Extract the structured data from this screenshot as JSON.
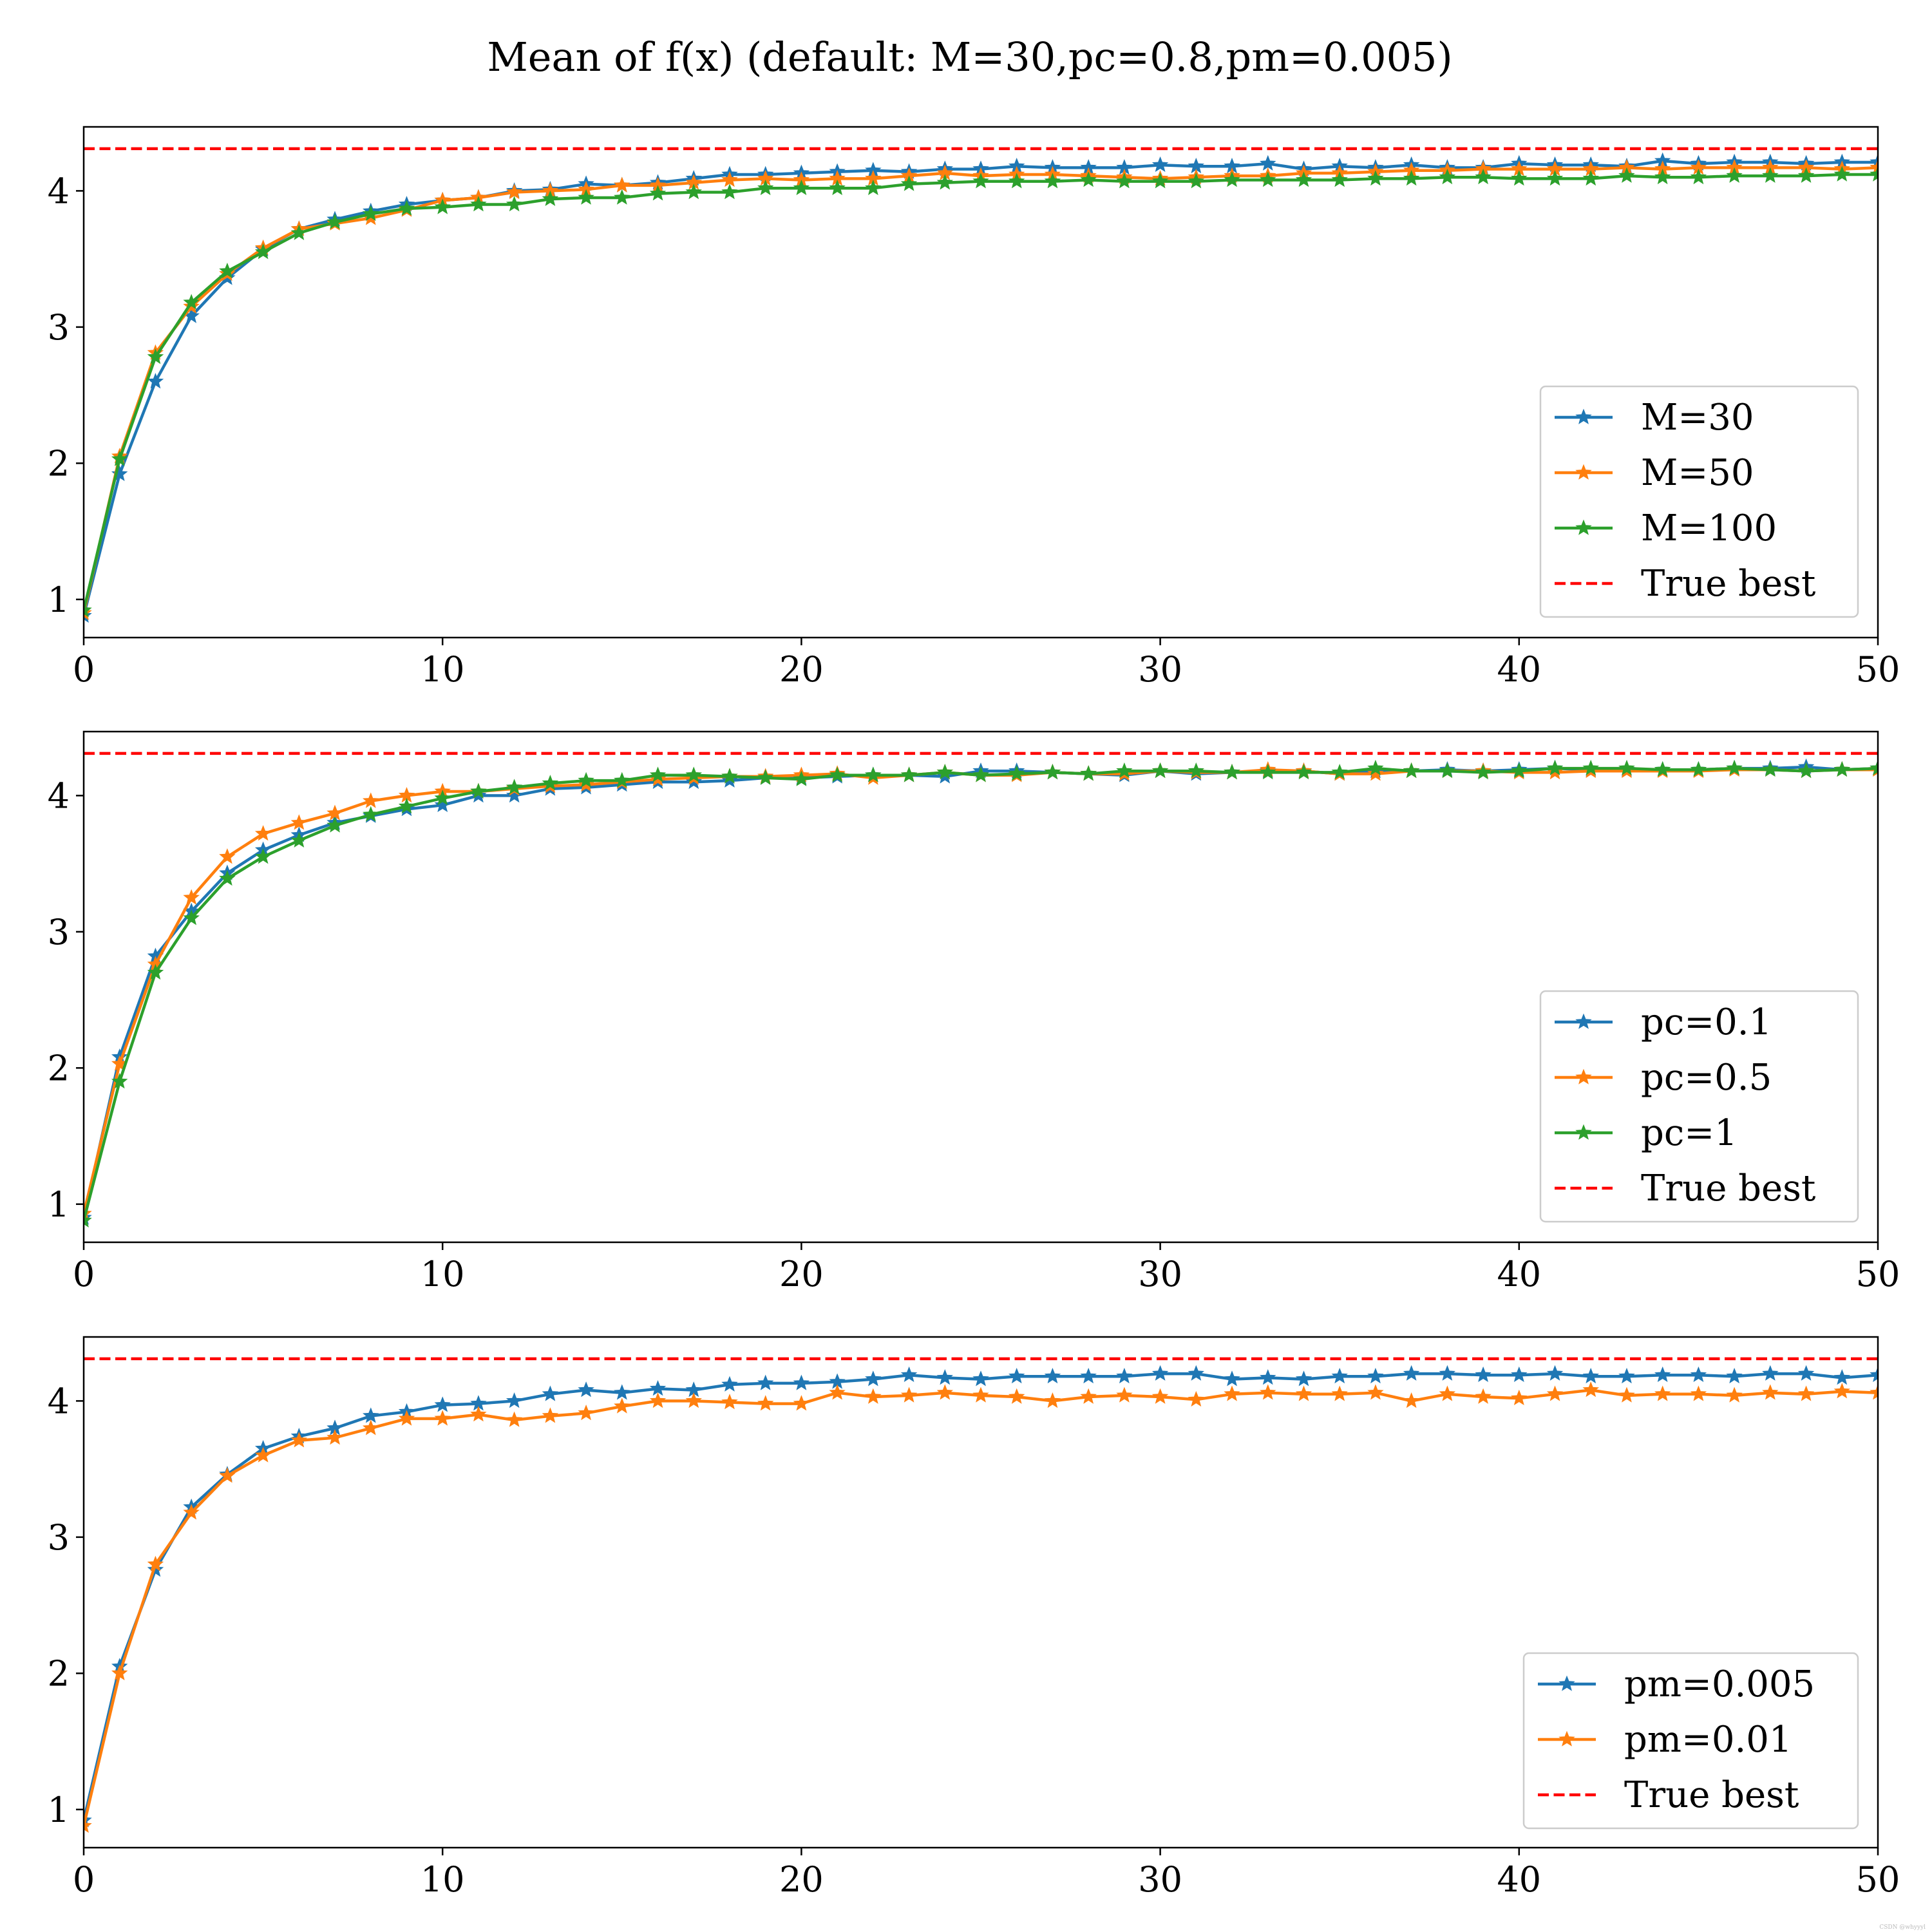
{
  "title": "Mean of f(x) (default: M=30,pc=0.8,pm=0.005)",
  "watermark": "CSDN @whyyyl",
  "colors": {
    "blue": "#1f77b4",
    "orange": "#ff7f0e",
    "green": "#2ca02c",
    "red": "#ff0000"
  },
  "chart_data": [
    {
      "type": "line",
      "title": "",
      "xlabel": "",
      "ylabel": "",
      "xlim": [
        0,
        50
      ],
      "ylim": [
        0.72,
        4.47
      ],
      "xticks": [
        "0",
        "10",
        "20",
        "30",
        "40",
        "50"
      ],
      "yticks": [
        "1",
        "2",
        "3",
        "4"
      ],
      "legend_position": "lower-right",
      "reference_line": {
        "name": "True best",
        "y": 4.31,
        "color": "#ff0000",
        "style": "dashed"
      },
      "series": [
        {
          "name": "M=30",
          "color": "#1f77b4",
          "x": [
            0,
            1,
            2,
            3,
            4,
            5,
            6,
            7,
            8,
            9,
            10,
            11,
            12,
            13,
            14,
            15,
            16,
            17,
            18,
            19,
            20,
            21,
            22,
            23,
            24,
            25,
            26,
            27,
            28,
            29,
            30,
            31,
            32,
            33,
            34,
            35,
            36,
            37,
            38,
            39,
            40,
            41,
            42,
            43,
            44,
            45,
            46,
            47,
            48,
            49,
            50
          ],
          "values": [
            0.88,
            1.92,
            2.6,
            3.08,
            3.36,
            3.57,
            3.72,
            3.79,
            3.85,
            3.9,
            3.93,
            3.95,
            4.0,
            4.01,
            4.05,
            4.04,
            4.06,
            4.09,
            4.12,
            4.12,
            4.13,
            4.14,
            4.15,
            4.14,
            4.16,
            4.16,
            4.18,
            4.17,
            4.17,
            4.17,
            4.19,
            4.18,
            4.18,
            4.2,
            4.16,
            4.18,
            4.17,
            4.19,
            4.17,
            4.17,
            4.2,
            4.19,
            4.19,
            4.18,
            4.22,
            4.2,
            4.21,
            4.21,
            4.2,
            4.21,
            4.21
          ]
        },
        {
          "name": "M=50",
          "color": "#ff7f0e",
          "x": [
            0,
            1,
            2,
            3,
            4,
            5,
            6,
            7,
            8,
            9,
            10,
            11,
            12,
            13,
            14,
            15,
            16,
            17,
            18,
            19,
            20,
            21,
            22,
            23,
            24,
            25,
            26,
            27,
            28,
            29,
            30,
            31,
            32,
            33,
            34,
            35,
            36,
            37,
            38,
            39,
            40,
            41,
            42,
            43,
            44,
            45,
            46,
            47,
            48,
            49,
            50
          ],
          "values": [
            0.9,
            2.05,
            2.81,
            3.15,
            3.39,
            3.58,
            3.72,
            3.76,
            3.8,
            3.86,
            3.93,
            3.95,
            3.99,
            4.0,
            4.01,
            4.04,
            4.04,
            4.06,
            4.08,
            4.09,
            4.08,
            4.09,
            4.09,
            4.11,
            4.13,
            4.11,
            4.12,
            4.12,
            4.11,
            4.1,
            4.09,
            4.1,
            4.11,
            4.11,
            4.13,
            4.13,
            4.14,
            4.15,
            4.15,
            4.16,
            4.16,
            4.16,
            4.16,
            4.17,
            4.16,
            4.17,
            4.17,
            4.17,
            4.17,
            4.16,
            4.17
          ]
        },
        {
          "name": "M=100",
          "color": "#2ca02c",
          "x": [
            0,
            1,
            2,
            3,
            4,
            5,
            6,
            7,
            8,
            9,
            10,
            11,
            12,
            13,
            14,
            15,
            16,
            17,
            18,
            19,
            20,
            21,
            22,
            23,
            24,
            25,
            26,
            27,
            28,
            29,
            30,
            31,
            32,
            33,
            34,
            35,
            36,
            37,
            38,
            39,
            40,
            41,
            42,
            43,
            44,
            45,
            46,
            47,
            48,
            49,
            50
          ],
          "values": [
            0.92,
            2.03,
            2.78,
            3.18,
            3.41,
            3.55,
            3.69,
            3.77,
            3.83,
            3.87,
            3.88,
            3.9,
            3.9,
            3.94,
            3.95,
            3.95,
            3.98,
            3.99,
            3.99,
            4.02,
            4.02,
            4.02,
            4.02,
            4.05,
            4.06,
            4.07,
            4.07,
            4.07,
            4.08,
            4.07,
            4.07,
            4.07,
            4.08,
            4.08,
            4.08,
            4.08,
            4.09,
            4.09,
            4.1,
            4.1,
            4.09,
            4.09,
            4.09,
            4.11,
            4.1,
            4.1,
            4.11,
            4.11,
            4.11,
            4.12,
            4.12
          ]
        }
      ]
    },
    {
      "type": "line",
      "title": "",
      "xlabel": "",
      "ylabel": "",
      "xlim": [
        0,
        50
      ],
      "ylim": [
        0.72,
        4.47
      ],
      "xticks": [
        "0",
        "10",
        "20",
        "30",
        "40",
        "50"
      ],
      "yticks": [
        "1",
        "2",
        "3",
        "4"
      ],
      "legend_position": "lower-right",
      "reference_line": {
        "name": "True best",
        "y": 4.31,
        "color": "#ff0000",
        "style": "dashed"
      },
      "series": [
        {
          "name": "pc=0.1",
          "color": "#1f77b4",
          "x": [
            0,
            1,
            2,
            3,
            4,
            5,
            6,
            7,
            8,
            9,
            10,
            11,
            12,
            13,
            14,
            15,
            16,
            17,
            18,
            19,
            20,
            21,
            22,
            23,
            24,
            25,
            26,
            27,
            28,
            29,
            30,
            31,
            32,
            33,
            34,
            35,
            36,
            37,
            38,
            39,
            40,
            41,
            42,
            43,
            44,
            45,
            46,
            47,
            48,
            49,
            50
          ],
          "values": [
            0.9,
            2.08,
            2.82,
            3.15,
            3.43,
            3.6,
            3.71,
            3.8,
            3.85,
            3.9,
            3.93,
            4.0,
            4.0,
            4.05,
            4.06,
            4.08,
            4.1,
            4.1,
            4.11,
            4.13,
            4.13,
            4.14,
            4.15,
            4.15,
            4.14,
            4.18,
            4.18,
            4.17,
            4.16,
            4.15,
            4.18,
            4.16,
            4.17,
            4.18,
            4.18,
            4.16,
            4.18,
            4.18,
            4.19,
            4.18,
            4.19,
            4.2,
            4.19,
            4.19,
            4.19,
            4.19,
            4.2,
            4.2,
            4.21,
            4.19,
            4.2
          ]
        },
        {
          "name": "pc=0.5",
          "color": "#ff7f0e",
          "x": [
            0,
            1,
            2,
            3,
            4,
            5,
            6,
            7,
            8,
            9,
            10,
            11,
            12,
            13,
            14,
            15,
            16,
            17,
            18,
            19,
            20,
            21,
            22,
            23,
            24,
            25,
            26,
            27,
            28,
            29,
            30,
            31,
            32,
            33,
            34,
            35,
            36,
            37,
            38,
            39,
            40,
            41,
            42,
            43,
            44,
            45,
            46,
            47,
            48,
            49,
            50
          ],
          "values": [
            0.93,
            2.03,
            2.76,
            3.25,
            3.55,
            3.72,
            3.8,
            3.87,
            3.96,
            4.0,
            4.03,
            4.03,
            4.05,
            4.07,
            4.08,
            4.1,
            4.12,
            4.13,
            4.14,
            4.14,
            4.15,
            4.16,
            4.13,
            4.15,
            4.17,
            4.15,
            4.15,
            4.17,
            4.16,
            4.16,
            4.18,
            4.17,
            4.17,
            4.19,
            4.18,
            4.16,
            4.16,
            4.18,
            4.18,
            4.18,
            4.17,
            4.17,
            4.18,
            4.18,
            4.18,
            4.18,
            4.19,
            4.19,
            4.18,
            4.19,
            4.19
          ]
        },
        {
          "name": "pc=1",
          "color": "#2ca02c",
          "x": [
            0,
            1,
            2,
            3,
            4,
            5,
            6,
            7,
            8,
            9,
            10,
            11,
            12,
            13,
            14,
            15,
            16,
            17,
            18,
            19,
            20,
            21,
            22,
            23,
            24,
            25,
            26,
            27,
            28,
            29,
            30,
            31,
            32,
            33,
            34,
            35,
            36,
            37,
            38,
            39,
            40,
            41,
            42,
            43,
            44,
            45,
            46,
            47,
            48,
            49,
            50
          ],
          "values": [
            0.88,
            1.9,
            2.7,
            3.1,
            3.39,
            3.55,
            3.67,
            3.78,
            3.86,
            3.92,
            3.98,
            4.03,
            4.06,
            4.09,
            4.11,
            4.11,
            4.15,
            4.15,
            4.14,
            4.13,
            4.12,
            4.15,
            4.15,
            4.15,
            4.17,
            4.15,
            4.16,
            4.17,
            4.16,
            4.18,
            4.18,
            4.18,
            4.17,
            4.17,
            4.17,
            4.17,
            4.2,
            4.18,
            4.18,
            4.17,
            4.18,
            4.2,
            4.2,
            4.2,
            4.19,
            4.19,
            4.2,
            4.19,
            4.18,
            4.19,
            4.2
          ]
        }
      ]
    },
    {
      "type": "line",
      "title": "",
      "xlabel": "",
      "ylabel": "",
      "xlim": [
        0,
        50
      ],
      "ylim": [
        0.72,
        4.47
      ],
      "xticks": [
        "0",
        "10",
        "20",
        "30",
        "40",
        "50"
      ],
      "yticks": [
        "1",
        "2",
        "3",
        "4"
      ],
      "legend_position": "lower-right",
      "reference_line": {
        "name": "True best",
        "y": 4.31,
        "color": "#ff0000",
        "style": "dashed"
      },
      "series": [
        {
          "name": "pm=0.005",
          "color": "#1f77b4",
          "x": [
            0,
            1,
            2,
            3,
            4,
            5,
            6,
            7,
            8,
            9,
            10,
            11,
            12,
            13,
            14,
            15,
            16,
            17,
            18,
            19,
            20,
            21,
            22,
            23,
            24,
            25,
            26,
            27,
            28,
            29,
            30,
            31,
            32,
            33,
            34,
            35,
            36,
            37,
            38,
            39,
            40,
            41,
            42,
            43,
            44,
            45,
            46,
            47,
            48,
            49,
            50
          ],
          "values": [
            0.92,
            2.05,
            2.76,
            3.22,
            3.46,
            3.65,
            3.74,
            3.8,
            3.89,
            3.92,
            3.97,
            3.98,
            4.0,
            4.05,
            4.08,
            4.06,
            4.09,
            4.08,
            4.12,
            4.13,
            4.13,
            4.14,
            4.16,
            4.19,
            4.17,
            4.16,
            4.18,
            4.18,
            4.18,
            4.18,
            4.2,
            4.2,
            4.16,
            4.17,
            4.16,
            4.18,
            4.18,
            4.2,
            4.2,
            4.19,
            4.19,
            4.2,
            4.18,
            4.18,
            4.19,
            4.19,
            4.18,
            4.2,
            4.2,
            4.17,
            4.19
          ]
        },
        {
          "name": "pm=0.01",
          "color": "#ff7f0e",
          "x": [
            0,
            1,
            2,
            3,
            4,
            5,
            6,
            7,
            8,
            9,
            10,
            11,
            12,
            13,
            14,
            15,
            16,
            17,
            18,
            19,
            20,
            21,
            22,
            23,
            24,
            25,
            26,
            27,
            28,
            29,
            30,
            31,
            32,
            33,
            34,
            35,
            36,
            37,
            38,
            39,
            40,
            41,
            42,
            43,
            44,
            45,
            46,
            47,
            48,
            49,
            50
          ],
          "values": [
            0.88,
            2.0,
            2.8,
            3.18,
            3.45,
            3.6,
            3.71,
            3.73,
            3.8,
            3.87,
            3.87,
            3.9,
            3.86,
            3.89,
            3.91,
            3.96,
            4.0,
            4.0,
            3.99,
            3.98,
            3.98,
            4.06,
            4.03,
            4.04,
            4.06,
            4.04,
            4.03,
            4.0,
            4.03,
            4.04,
            4.03,
            4.01,
            4.05,
            4.06,
            4.05,
            4.05,
            4.06,
            4.0,
            4.05,
            4.03,
            4.02,
            4.05,
            4.08,
            4.04,
            4.05,
            4.05,
            4.04,
            4.06,
            4.05,
            4.07,
            4.06
          ]
        }
      ]
    }
  ]
}
